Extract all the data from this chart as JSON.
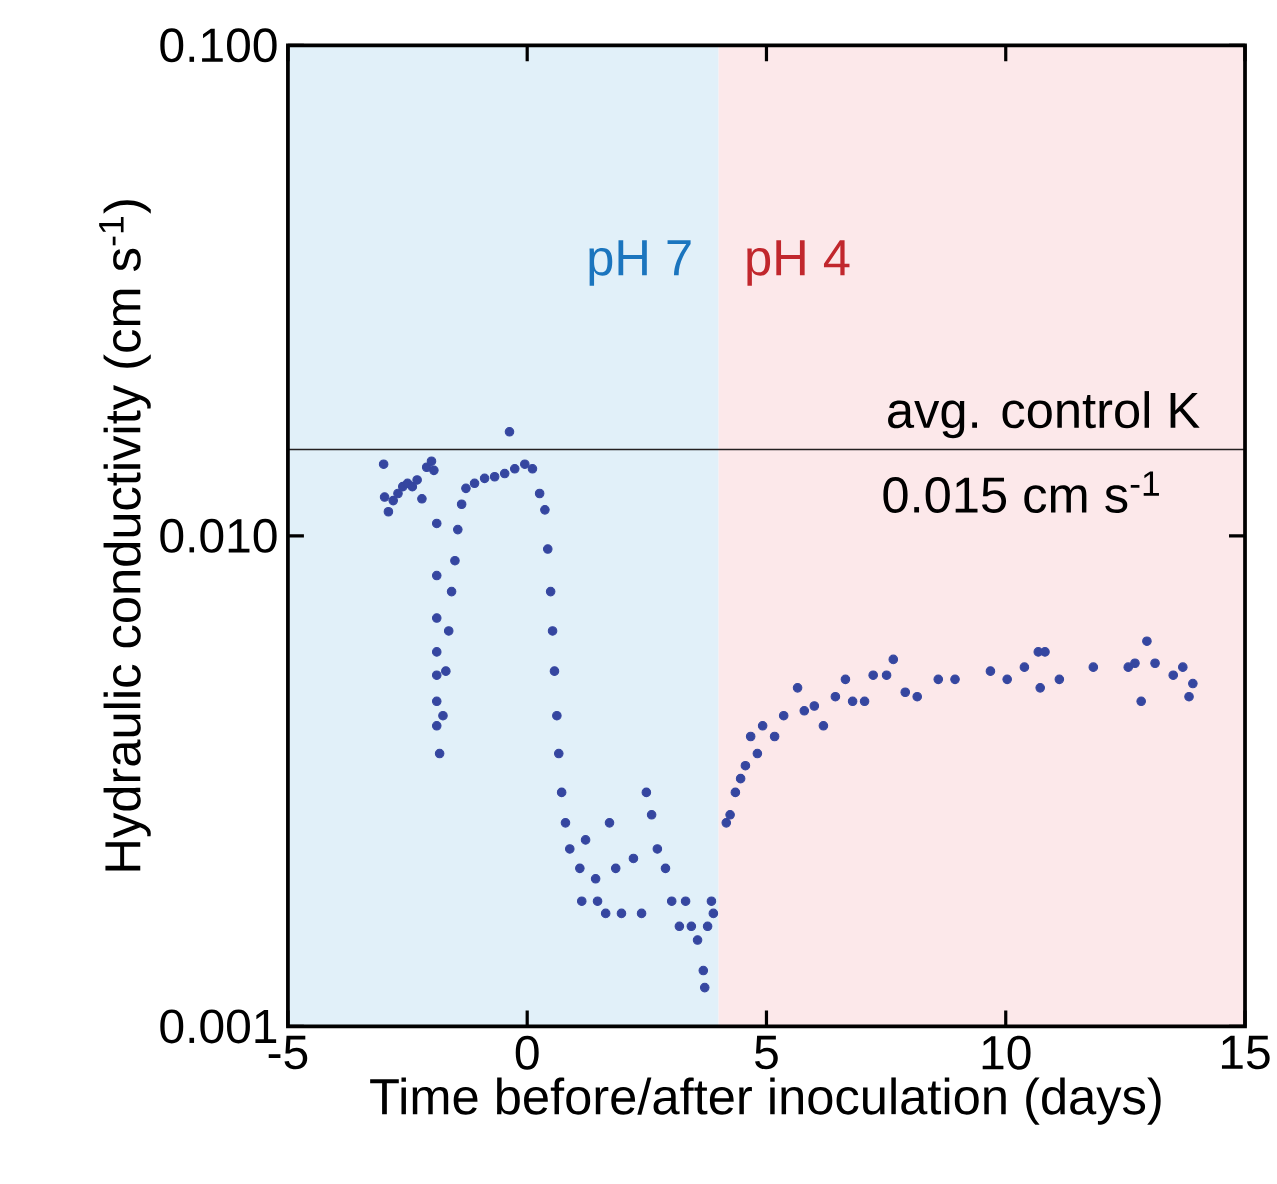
{
  "chart_data": {
    "type": "scatter",
    "xlabel": "Time before/after inoculation (days)",
    "ylabel": "Hydraulic conductivity (cm s$^{-1}$)",
    "log": "y",
    "grid": false,
    "marker": "circle",
    "xlim": [
      -5,
      15
    ],
    "xticks": [
      -5,
      0,
      5,
      10,
      15
    ],
    "ylim": [
      0.001,
      0.1
    ],
    "yticks": [
      {
        "value": 0.001,
        "label": "0.001"
      },
      {
        "value": 0.01,
        "label": "0.010"
      },
      {
        "value": 0.1,
        "label": "0.100"
      }
    ],
    "bands": [
      {
        "axis": "x",
        "from": -5,
        "to": 4,
        "label": "pH 7",
        "color": "#e1f0f9"
      },
      {
        "axis": "x",
        "from": 4,
        "to": 15,
        "label": "pH 4",
        "color": "#fce8ea"
      }
    ],
    "ref_lines": [
      {
        "axis": "y",
        "value": 0.015,
        "label": "avg. control K",
        "color": "#231f20"
      }
    ],
    "annotations": [
      "0.015 cm s$^{-1}$"
    ],
    "series": [
      {
        "color": "#3546a0",
        "x": [
          -3.0,
          -2.98,
          -2.9,
          -2.8,
          -2.7,
          -2.6,
          -2.5,
          -2.4,
          -2.3,
          -2.2,
          -2.1,
          -2.0,
          -1.95,
          -1.89,
          -1.89,
          -1.89,
          -1.89,
          -1.89,
          -1.89,
          -1.89,
          -1.83,
          -1.76,
          -1.7,
          -1.64,
          -1.58,
          -1.51,
          -1.45,
          -1.37,
          -1.28,
          -1.1,
          -0.89,
          -0.68,
          -0.47,
          -0.37,
          -0.26,
          -0.05,
          0.11,
          0.26,
          0.37,
          0.43,
          0.49,
          0.53,
          0.57,
          0.62,
          0.66,
          0.72,
          0.8,
          0.89,
          1.1,
          1.14,
          1.22,
          1.43,
          1.47,
          1.64,
          1.72,
          1.85,
          1.97,
          2.22,
          2.39,
          2.49,
          2.6,
          2.72,
          2.89,
          3.02,
          3.18,
          3.31,
          3.43,
          3.56,
          3.68,
          3.71,
          3.77,
          3.85,
          3.89,
          4.16,
          4.24,
          4.35,
          4.46,
          4.56,
          4.67,
          4.81,
          4.92,
          5.17,
          5.36,
          5.65,
          5.79,
          6.0,
          6.19,
          6.44,
          6.65,
          6.8,
          7.05,
          7.23,
          7.51,
          7.65,
          7.9,
          8.15,
          8.59,
          8.94,
          9.68,
          10.03,
          10.39,
          10.68,
          10.72,
          10.82,
          11.12,
          11.83,
          12.56,
          12.7,
          12.83,
          12.95,
          13.12,
          13.5,
          13.7,
          13.83,
          13.91
        ],
        "values": [
          0.014,
          0.012,
          0.0112,
          0.0118,
          0.0122,
          0.0126,
          0.0128,
          0.0126,
          0.013,
          0.0119,
          0.0138,
          0.0142,
          0.0136,
          0.0106,
          0.0083,
          0.0068,
          0.0058,
          0.0052,
          0.0046,
          0.0041,
          0.0036,
          0.0043,
          0.0053,
          0.0064,
          0.0077,
          0.0089,
          0.0103,
          0.0116,
          0.0125,
          0.0128,
          0.0131,
          0.0132,
          0.0134,
          0.0163,
          0.0137,
          0.014,
          0.0137,
          0.0122,
          0.0113,
          0.0094,
          0.0077,
          0.0064,
          0.0053,
          0.0043,
          0.0036,
          0.003,
          0.0026,
          0.0023,
          0.0021,
          0.0018,
          0.0024,
          0.002,
          0.0018,
          0.0017,
          0.0026,
          0.0021,
          0.0017,
          0.0022,
          0.0017,
          0.003,
          0.0027,
          0.0023,
          0.0021,
          0.0018,
          0.0016,
          0.0018,
          0.0016,
          0.0015,
          0.0013,
          0.0012,
          0.0016,
          0.0018,
          0.0017,
          0.0026,
          0.0027,
          0.003,
          0.0032,
          0.0034,
          0.0039,
          0.0036,
          0.0041,
          0.0039,
          0.0043,
          0.0049,
          0.0044,
          0.0045,
          0.0041,
          0.0047,
          0.0051,
          0.0046,
          0.0046,
          0.0052,
          0.0052,
          0.0056,
          0.0048,
          0.0047,
          0.0051,
          0.0051,
          0.0053,
          0.0051,
          0.0054,
          0.0058,
          0.0049,
          0.0058,
          0.0051,
          0.0054,
          0.0054,
          0.0055,
          0.0046,
          0.0061,
          0.0055,
          0.0052,
          0.0054,
          0.0047,
          0.005
        ]
      }
    ]
  }
}
